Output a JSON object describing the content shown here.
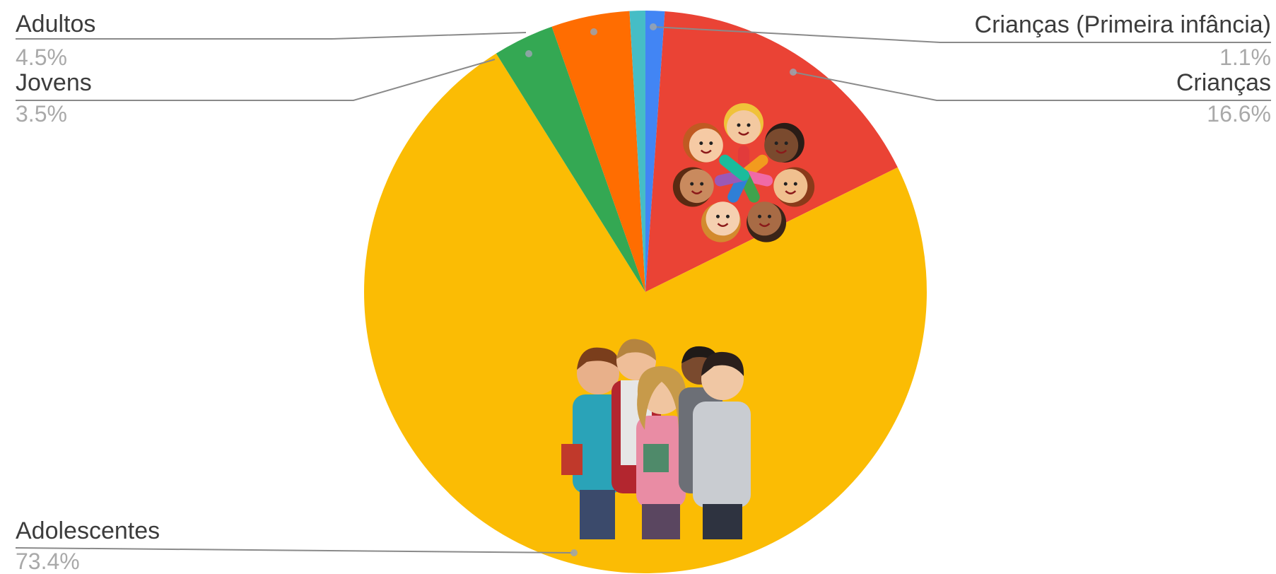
{
  "chart_data": {
    "type": "pie",
    "title": "",
    "slices": [
      {
        "label": "Crianças (Primeira infância)",
        "value": 1.1,
        "value_label": "1.1%",
        "color": "#4285f4"
      },
      {
        "label": "Crianças",
        "value": 16.6,
        "value_label": "16.6%",
        "color": "#ea4335"
      },
      {
        "label": "Adolescentes",
        "value": 73.4,
        "value_label": "73.4%",
        "color": "#fbbc04"
      },
      {
        "label": "Jovens",
        "value": 3.5,
        "value_label": "3.5%",
        "color": "#34a853"
      },
      {
        "label": "Adultos",
        "value": 4.5,
        "value_label": "4.5%",
        "color": "#ff6d01"
      },
      {
        "label": "",
        "value": 0.9,
        "value_label": "",
        "color": "#46bdc6"
      }
    ],
    "legend": "none",
    "label_style": "outside leader lines"
  },
  "illustrations": [
    {
      "name": "children-circle-illustration",
      "slice": "Crianças"
    },
    {
      "name": "teenagers-group-illustration",
      "slice": "Adolescentes"
    }
  ]
}
